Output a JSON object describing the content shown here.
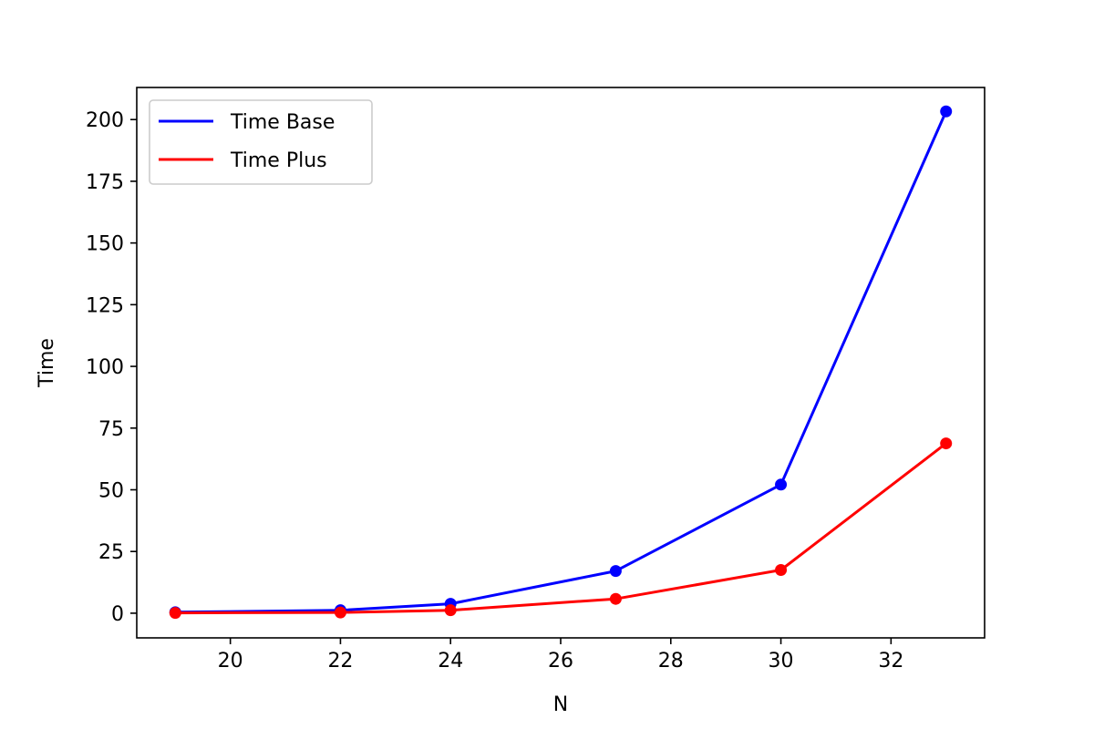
{
  "chart_data": {
    "type": "line",
    "title": "",
    "xlabel": "N",
    "ylabel": "Time",
    "x": [
      19,
      22,
      24,
      27,
      30,
      33
    ],
    "xlim": [
      18.3,
      33.7
    ],
    "ylim": [
      -10,
      213
    ],
    "xticks": [
      20,
      22,
      24,
      26,
      28,
      30,
      32
    ],
    "yticks": [
      0,
      25,
      50,
      75,
      100,
      125,
      150,
      175,
      200
    ],
    "grid": false,
    "legend_position": "upper-left",
    "series": [
      {
        "name": "Time Base",
        "color": "#0000ff",
        "values": [
          0.4,
          1.2,
          3.8,
          17.1,
          52.1,
          203.3
        ]
      },
      {
        "name": "Time Plus",
        "color": "#ff0000",
        "values": [
          0.1,
          0.3,
          1.2,
          5.8,
          17.5,
          68.8
        ]
      }
    ]
  }
}
